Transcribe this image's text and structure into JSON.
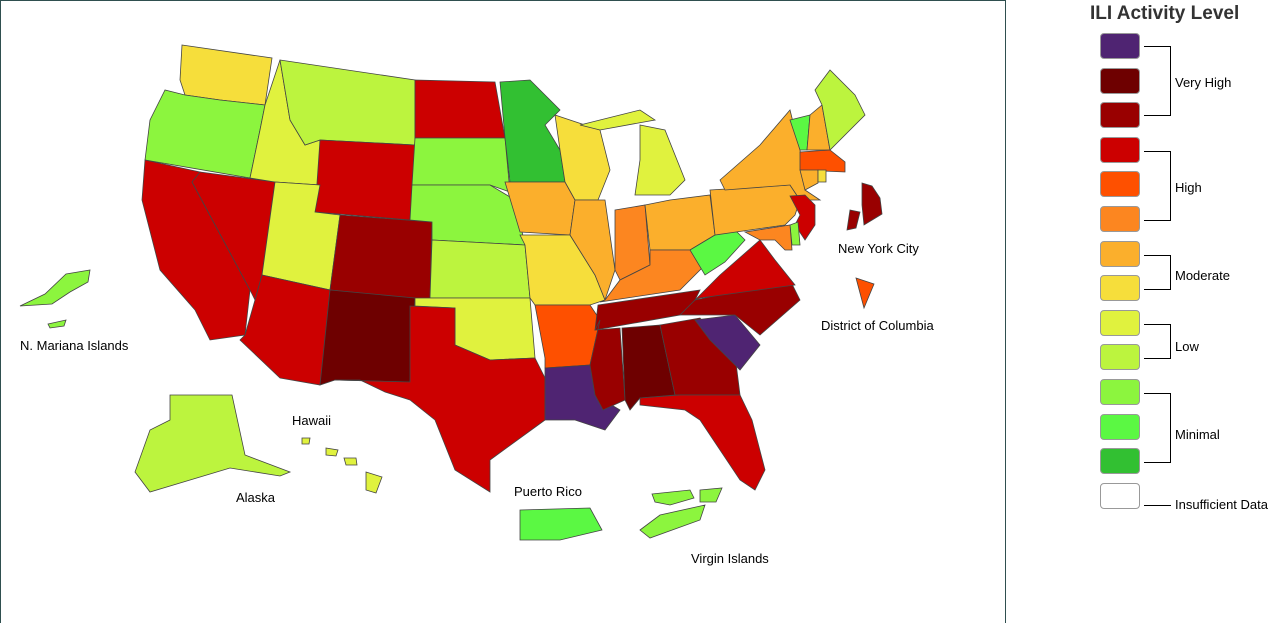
{
  "legend": {
    "title": "ILI Activity Level",
    "levels": [
      {
        "level": 13,
        "color": "#4f2472"
      },
      {
        "level": 12,
        "color": "#6e0000"
      },
      {
        "level": 11,
        "color": "#990000"
      },
      {
        "level": 10,
        "color": "#cc0000"
      },
      {
        "level": 9,
        "color": "#fe5000"
      },
      {
        "level": 8,
        "color": "#fc8620"
      },
      {
        "level": 7,
        "color": "#fbaf2c"
      },
      {
        "level": 6,
        "color": "#f6de3b"
      },
      {
        "level": 5,
        "color": "#e0f23e"
      },
      {
        "level": 4,
        "color": "#bcf43e"
      },
      {
        "level": 3,
        "color": "#8cf53e"
      },
      {
        "level": 2,
        "color": "#5bf843"
      },
      {
        "level": 1,
        "color": "#32c032"
      },
      {
        "level": 0,
        "color": "#ffffff"
      }
    ],
    "groups": [
      "Very High",
      "High",
      "Moderate",
      "Low",
      "Minimal",
      "Insufficient Data"
    ]
  },
  "map": {
    "labels": {
      "nmi": "N. Mariana Islands",
      "hawaii": "Hawaii",
      "alaska": "Alaska",
      "puerto_rico": "Puerto Rico",
      "virgin_islands": "Virgin Islands",
      "nyc": "New York City",
      "dc": "District of Columbia"
    },
    "jurisdiction_levels": {
      "WA": 6,
      "OR": 3,
      "CA": 10,
      "NV": 10,
      "ID": 5,
      "MT": 4,
      "WY": 10,
      "UT": 5,
      "AZ": 10,
      "CO": 11,
      "NM": 12,
      "ND": 10,
      "SD": 3,
      "NE": 3,
      "KS": 4,
      "OK": 5,
      "TX": 10,
      "MN": 1,
      "IA": 7,
      "MO": 6,
      "AR": 9,
      "LA": 13,
      "WI": 6,
      "IL": 7,
      "MI": 5,
      "IN": 8,
      "OH": 7,
      "KY": 8,
      "TN": 11,
      "MS": 11,
      "AL": 12,
      "GA": 11,
      "FL": 10,
      "SC": 13,
      "NC": 11,
      "VA": 10,
      "WV": 2,
      "PA": 7,
      "NY": 7,
      "VT": 2,
      "NH": 7,
      "ME": 4,
      "MA": 9,
      "RI": 6,
      "CT": 7,
      "NJ": 10,
      "DE": 3,
      "MD": 8,
      "DC": 9,
      "NYC": 11,
      "AK": 4,
      "HI": 5,
      "PR": 2,
      "VI": 3,
      "MP": 3
    }
  }
}
